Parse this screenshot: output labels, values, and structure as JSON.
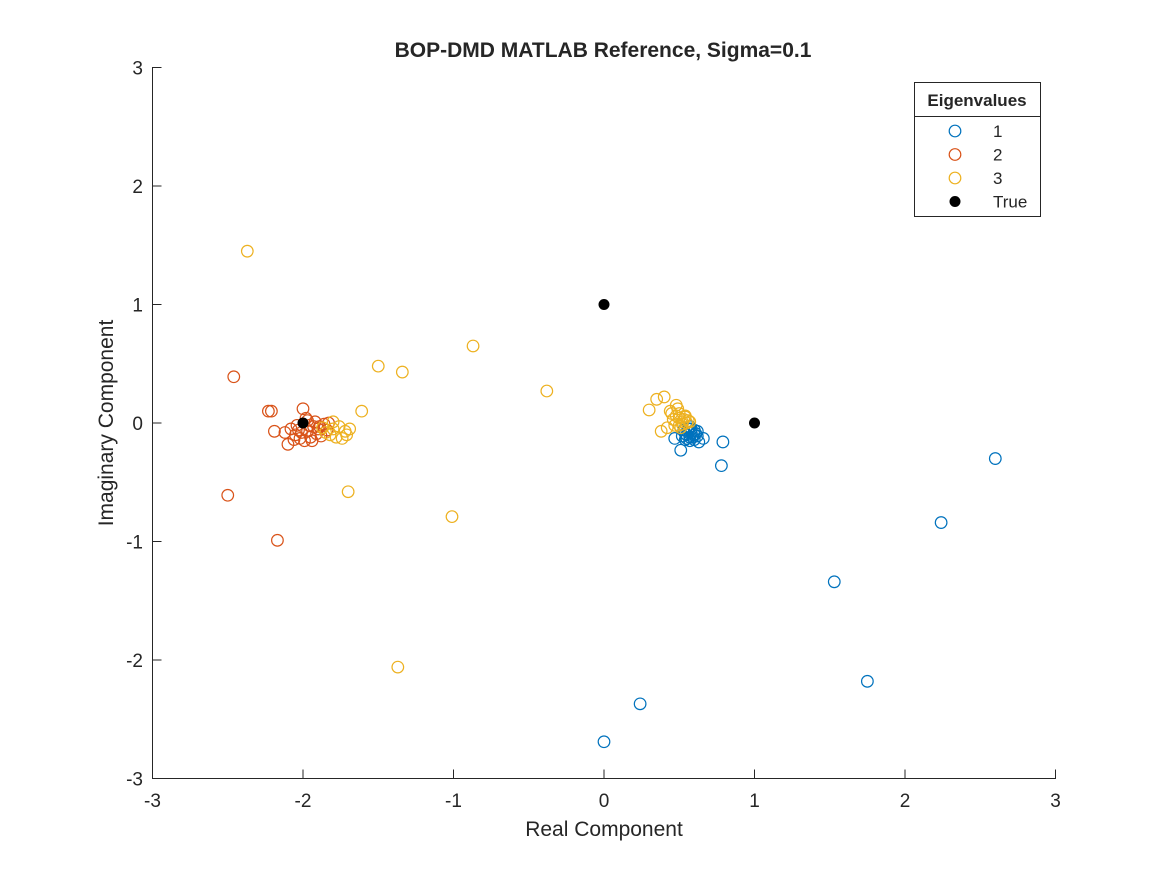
{
  "chart_data": {
    "type": "scatter",
    "title": "BOP-DMD MATLAB Reference, Sigma=0.1",
    "xlabel": "Real Component",
    "ylabel": "Imaginary Component",
    "xlim": [
      -3,
      3
    ],
    "ylim": [
      -3,
      3
    ],
    "xticks": [
      "-3",
      "-2",
      "-1",
      "0",
      "1",
      "2",
      "3"
    ],
    "yticks": [
      "-3",
      "-2",
      "-1",
      "0",
      "1",
      "2",
      "3"
    ],
    "grid": false,
    "legend": {
      "title": "Eigenvalues",
      "placement": "top-right",
      "entries": [
        "1",
        "2",
        "3",
        "True"
      ]
    },
    "series": [
      {
        "name": "1",
        "color": "#0072BD",
        "marker": "open-circle",
        "points": [
          [
            2.6,
            -0.3
          ],
          [
            2.24,
            -0.84
          ],
          [
            1.53,
            -1.34
          ],
          [
            1.75,
            -2.18
          ],
          [
            0.24,
            -2.37
          ],
          [
            0.0,
            -2.69
          ],
          [
            0.79,
            -0.16
          ],
          [
            0.78,
            -0.36
          ],
          [
            0.51,
            -0.23
          ],
          [
            0.47,
            -0.13
          ],
          [
            0.66,
            -0.13
          ],
          [
            0.62,
            -0.11
          ],
          [
            0.6,
            -0.14
          ],
          [
            0.57,
            -0.15
          ],
          [
            0.55,
            -0.1
          ],
          [
            0.58,
            -0.08
          ],
          [
            0.6,
            -0.06
          ],
          [
            0.56,
            -0.05
          ],
          [
            0.54,
            -0.09
          ],
          [
            0.59,
            -0.12
          ],
          [
            0.53,
            -0.06
          ],
          [
            0.61,
            -0.09
          ],
          [
            0.57,
            -0.03
          ],
          [
            0.55,
            -0.13
          ],
          [
            0.63,
            -0.16
          ],
          [
            0.52,
            -0.11
          ],
          [
            0.58,
            -0.05
          ],
          [
            0.6,
            -0.1
          ],
          [
            0.56,
            -0.08
          ],
          [
            0.54,
            -0.14
          ],
          [
            0.62,
            -0.07
          ],
          [
            0.57,
            -0.12
          ]
        ]
      },
      {
        "name": "2",
        "color": "#D95319",
        "marker": "open-circle",
        "points": [
          [
            -2.46,
            0.39
          ],
          [
            -2.5,
            -0.61
          ],
          [
            -2.17,
            -0.99
          ],
          [
            -2.23,
            0.1
          ],
          [
            -2.21,
            0.1
          ],
          [
            -2.0,
            0.12
          ],
          [
            -2.19,
            -0.07
          ],
          [
            -2.1,
            -0.18
          ],
          [
            -2.08,
            -0.05
          ],
          [
            -2.05,
            -0.1
          ],
          [
            -2.02,
            -0.13
          ],
          [
            -1.99,
            -0.15
          ],
          [
            -1.97,
            -0.07
          ],
          [
            -1.95,
            -0.12
          ],
          [
            -1.93,
            -0.03
          ],
          [
            -1.91,
            -0.09
          ],
          [
            -1.9,
            -0.05
          ],
          [
            -1.88,
            -0.11
          ],
          [
            -1.86,
            -0.01
          ],
          [
            -1.84,
            -0.06
          ],
          [
            -1.83,
            0.0
          ],
          [
            -1.98,
            0.04
          ],
          [
            -1.96,
            -0.02
          ],
          [
            -2.04,
            -0.02
          ],
          [
            -2.12,
            -0.08
          ],
          [
            -2.06,
            -0.14
          ],
          [
            -1.94,
            -0.15
          ],
          [
            -1.92,
            0.01
          ],
          [
            -2.01,
            -0.08
          ],
          [
            -1.89,
            -0.03
          ],
          [
            -1.97,
            0.02
          ],
          [
            -2.03,
            -0.06
          ]
        ]
      },
      {
        "name": "3",
        "color": "#EDB120",
        "marker": "open-circle",
        "points": [
          [
            -2.37,
            1.45
          ],
          [
            -1.5,
            0.48
          ],
          [
            -1.34,
            0.43
          ],
          [
            -0.87,
            0.65
          ],
          [
            -0.38,
            0.27
          ],
          [
            -1.61,
            0.1
          ],
          [
            -1.7,
            -0.58
          ],
          [
            -1.01,
            -0.79
          ],
          [
            -1.37,
            -2.06
          ],
          [
            -1.69,
            -0.05
          ],
          [
            -1.71,
            -0.1
          ],
          [
            -1.74,
            -0.13
          ],
          [
            -1.78,
            -0.12
          ],
          [
            -1.8,
            -0.05
          ],
          [
            -1.76,
            -0.03
          ],
          [
            -1.72,
            -0.07
          ],
          [
            -1.82,
            -0.1
          ],
          [
            -1.85,
            -0.08
          ],
          [
            -1.87,
            -0.04
          ],
          [
            -1.8,
            0.01
          ],
          [
            0.3,
            0.11
          ],
          [
            0.35,
            0.2
          ],
          [
            0.4,
            0.22
          ],
          [
            0.44,
            0.1
          ],
          [
            0.48,
            0.15
          ],
          [
            0.38,
            -0.07
          ],
          [
            0.42,
            -0.04
          ],
          [
            0.46,
            0.03
          ],
          [
            0.5,
            0.08
          ],
          [
            0.52,
            0.01
          ],
          [
            0.54,
            0.05
          ],
          [
            0.49,
            0.12
          ],
          [
            0.47,
            -0.02
          ],
          [
            0.51,
            -0.04
          ],
          [
            0.53,
            0.03
          ],
          [
            0.55,
            0.0
          ],
          [
            0.56,
            0.02
          ],
          [
            0.5,
            0.04
          ],
          [
            0.48,
            0.06
          ],
          [
            0.52,
            -0.01
          ],
          [
            0.45,
            0.08
          ],
          [
            0.57,
            0.01
          ],
          [
            0.5,
            -0.02
          ],
          [
            0.54,
            0.06
          ]
        ]
      },
      {
        "name": "True",
        "color": "#000000",
        "marker": "filled-circle",
        "points": [
          [
            -2,
            0
          ],
          [
            0,
            1
          ],
          [
            1,
            0
          ]
        ]
      }
    ]
  }
}
